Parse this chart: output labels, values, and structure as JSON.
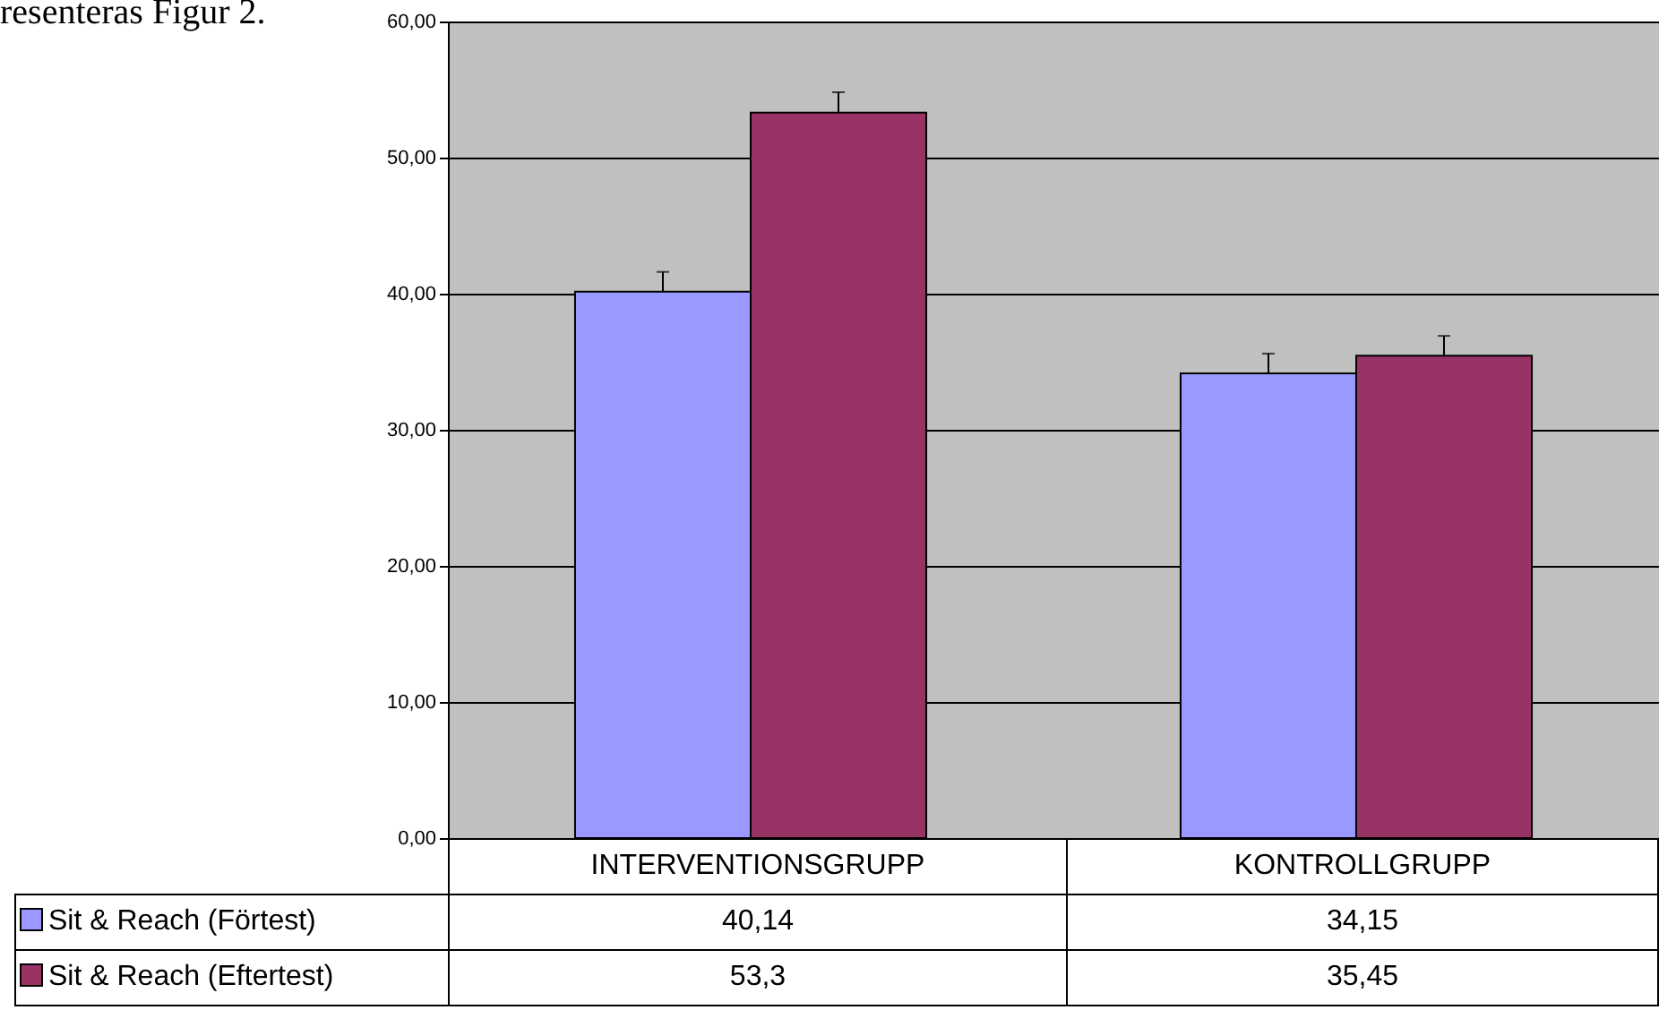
{
  "chart_data": {
    "type": "bar",
    "annotations": [
      "resenteras Figur 2."
    ],
    "categories": [
      "INTERVENTIONSGRUPP",
      "KONTROLLGRUPP"
    ],
    "series": [
      {
        "name": "Sit & Reach (Förtest)",
        "color": "#9999ff",
        "values": [
          40.14,
          34.15
        ],
        "value_labels": [
          "40,14",
          "34,15"
        ],
        "errors": [
          [
            40.14,
            41.6
          ],
          [
            34.15,
            35.6
          ]
        ]
      },
      {
        "name": "Sit & Reach (Eftertest)",
        "color": "#993366",
        "values": [
          53.3,
          35.45
        ],
        "value_labels": [
          "53,3",
          "35,45"
        ],
        "errors": [
          [
            53.3,
            54.8
          ],
          [
            35.45,
            36.9
          ]
        ]
      }
    ],
    "ylim": [
      0,
      60
    ],
    "yticks": [
      {
        "value": 0,
        "label": "0,00"
      },
      {
        "value": 10,
        "label": "10,00"
      },
      {
        "value": 20,
        "label": "20,00"
      },
      {
        "value": 30,
        "label": "30,00"
      },
      {
        "value": 40,
        "label": "40,00"
      },
      {
        "value": 50,
        "label": "50,00"
      },
      {
        "value": 60,
        "label": "60,00"
      }
    ],
    "grid": "y",
    "legend": "bottom",
    "tick_labels": "y"
  }
}
